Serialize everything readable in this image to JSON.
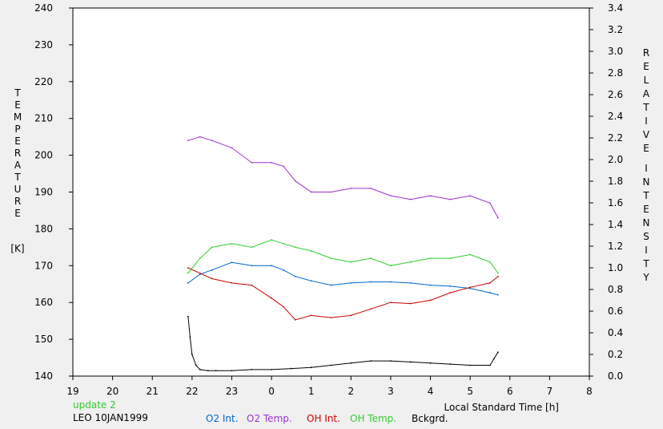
{
  "chart_data": {
    "type": "line",
    "xlabel": "Local Standard Time [h]",
    "x_ticks": [
      "19",
      "20",
      "21",
      "22",
      "23",
      "0",
      "1",
      "2",
      "3",
      "4",
      "5",
      "6",
      "7",
      "8"
    ],
    "xlim": [
      19,
      8
    ],
    "y_left": {
      "label_letters": [
        "T",
        "E",
        "M",
        "P",
        "E",
        "R",
        "A",
        "T",
        "U",
        "R",
        "E"
      ],
      "unit": "[K]",
      "ylim": [
        140,
        240
      ],
      "ticks": [
        "140",
        "150",
        "160",
        "170",
        "180",
        "190",
        "200",
        "210",
        "220",
        "230",
        "240"
      ]
    },
    "y_right": {
      "label_letters": [
        "R",
        "E",
        "L",
        "A",
        "T",
        "I",
        "V",
        "E",
        "I",
        "N",
        "T",
        "E",
        "N",
        "S",
        "I",
        "T",
        "Y"
      ],
      "ylim": [
        0.0,
        3.4
      ],
      "ticks": [
        "0.0",
        "0.2",
        "0.4",
        "0.6",
        "0.8",
        "1.0",
        "1.2",
        "1.4",
        "1.6",
        "1.8",
        "2.0",
        "2.2",
        "2.4",
        "2.6",
        "2.8",
        "3.0",
        "3.2",
        "3.4"
      ]
    },
    "series": [
      {
        "name": "O2 Int.",
        "axis": "right",
        "color": "#0066cc",
        "x": [
          21.9,
          22.2,
          22.5,
          23.0,
          23.5,
          0.0,
          0.3,
          0.6,
          1.0,
          1.5,
          2.0,
          2.5,
          3.0,
          3.5,
          4.0,
          4.5,
          5.0,
          5.5,
          5.7
        ],
        "y": [
          0.86,
          0.94,
          0.98,
          1.05,
          1.02,
          1.02,
          0.98,
          0.92,
          0.88,
          0.84,
          0.86,
          0.87,
          0.87,
          0.86,
          0.84,
          0.83,
          0.81,
          0.77,
          0.75
        ]
      },
      {
        "name": "O2 Temp.",
        "axis": "left",
        "color": "#9933cc",
        "x": [
          21.9,
          22.2,
          22.5,
          23.0,
          23.5,
          0.0,
          0.3,
          0.6,
          1.0,
          1.5,
          2.0,
          2.5,
          3.0,
          3.5,
          4.0,
          4.5,
          5.0,
          5.5,
          5.7
        ],
        "y": [
          204,
          205,
          204,
          202,
          198,
          198,
          197,
          193,
          190,
          190,
          191,
          191,
          189,
          188,
          189,
          188,
          189,
          187,
          183
        ]
      },
      {
        "name": "OH Int.",
        "axis": "right",
        "color": "#cc0000",
        "x": [
          21.9,
          22.2,
          22.5,
          23.0,
          23.5,
          0.0,
          0.3,
          0.6,
          1.0,
          1.5,
          2.0,
          2.5,
          3.0,
          3.5,
          4.0,
          4.5,
          5.0,
          5.5,
          5.7
        ],
        "y": [
          1.0,
          0.95,
          0.9,
          0.86,
          0.84,
          0.72,
          0.64,
          0.52,
          0.56,
          0.54,
          0.56,
          0.62,
          0.68,
          0.67,
          0.7,
          0.77,
          0.82,
          0.86,
          0.92
        ]
      },
      {
        "name": "OH Temp.",
        "axis": "left",
        "color": "#33cc33",
        "x": [
          21.9,
          22.2,
          22.5,
          23.0,
          23.5,
          0.0,
          0.3,
          0.6,
          1.0,
          1.5,
          2.0,
          2.5,
          3.0,
          3.5,
          4.0,
          4.5,
          5.0,
          5.5,
          5.7
        ],
        "y": [
          168,
          172,
          175,
          176,
          175,
          177,
          176,
          175,
          174,
          172,
          171,
          172,
          170,
          171,
          172,
          172,
          173,
          171,
          168
        ]
      },
      {
        "name": "Bckgrd.",
        "axis": "right",
        "color": "#000000",
        "x": [
          21.9,
          21.95,
          22.0,
          22.1,
          22.2,
          22.4,
          22.6,
          23.0,
          23.5,
          0.0,
          0.5,
          1.0,
          1.5,
          2.0,
          2.5,
          3.0,
          3.5,
          4.0,
          4.5,
          5.0,
          5.5,
          5.6,
          5.7
        ],
        "y": [
          0.55,
          0.36,
          0.2,
          0.1,
          0.06,
          0.05,
          0.05,
          0.05,
          0.06,
          0.06,
          0.07,
          0.08,
          0.1,
          0.12,
          0.14,
          0.14,
          0.13,
          0.12,
          0.11,
          0.1,
          0.1,
          0.16,
          0.22
        ]
      }
    ]
  },
  "footer": {
    "update_text": "update 2",
    "station_text": "LEO 10JAN1999",
    "update_color": "#33cc33"
  }
}
